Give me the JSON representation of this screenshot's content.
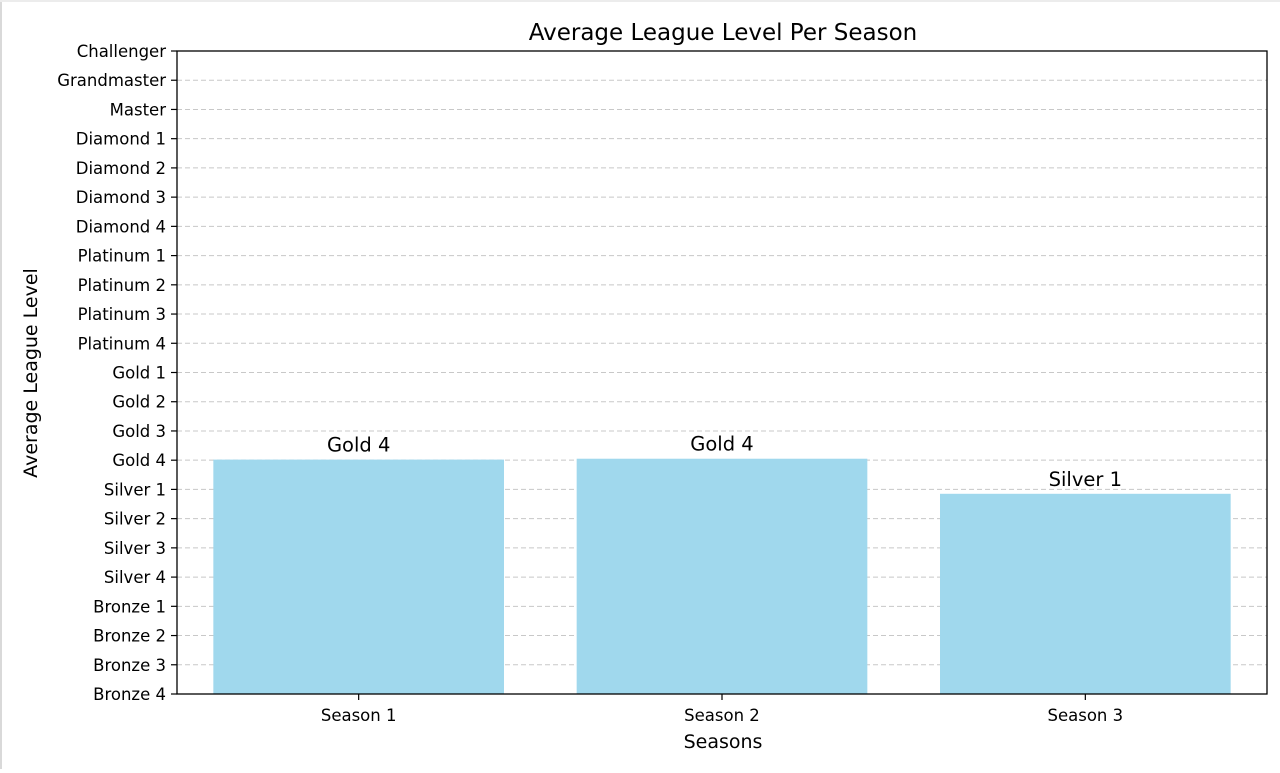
{
  "chart_data": {
    "type": "bar",
    "title": "Average League Level Per Season",
    "xlabel": "Seasons",
    "ylabel": "Average League Level",
    "categories": [
      "Season 1",
      "Season 2",
      "Season 3"
    ],
    "values": [
      5.02,
      5.05,
      3.85
    ],
    "value_labels": [
      "Gold 4",
      "Gold 4",
      "Silver 1"
    ],
    "y_tick_labels": [
      "Bronze 4",
      "Bronze 3",
      "Bronze 2",
      "Bronze 1",
      "Silver 4",
      "Silver 3",
      "Silver 2",
      "Silver 1",
      "Gold 4",
      "Gold 3",
      "Gold 2",
      "Gold 1",
      "Platinum 4",
      "Platinum 3",
      "Platinum 2",
      "Platinum 1",
      "Diamond 4",
      "Diamond 3",
      "Diamond 2",
      "Diamond 1",
      "Master",
      "Grandmaster",
      "Challenger"
    ],
    "y_tick_values": [
      -3,
      -2,
      -1,
      0,
      1,
      2,
      3,
      4,
      5,
      6,
      7,
      8,
      9,
      10,
      11,
      12,
      13,
      14,
      15,
      16,
      17,
      18,
      19
    ],
    "ylim": [
      -3,
      19
    ],
    "grid": "y",
    "bar_color": "#a0d8ed"
  }
}
